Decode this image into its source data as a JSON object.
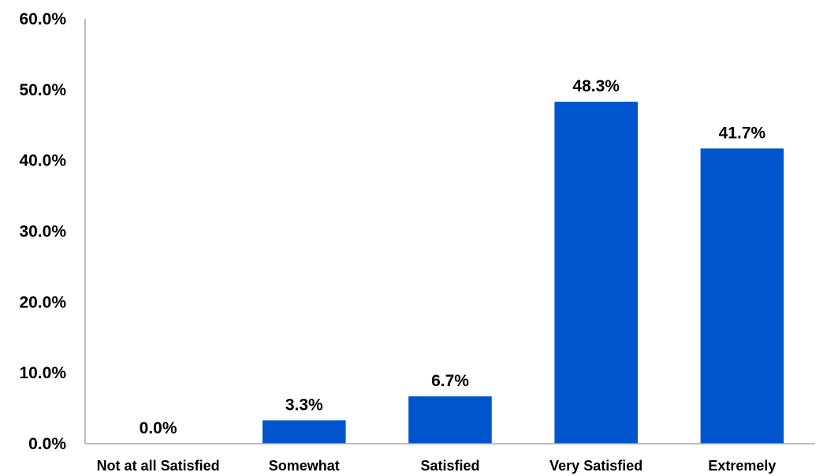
{
  "chart_data": {
    "type": "bar",
    "title": "",
    "xlabel": "",
    "ylabel": "",
    "categories": [
      "Not at all Satisfied",
      "Somewhat",
      "Satisfied",
      "Very Satisfied",
      "Extremely"
    ],
    "values": [
      0.0,
      3.3,
      6.7,
      48.3,
      41.7
    ],
    "data_labels": [
      "0.0%",
      "3.3%",
      "6.7%",
      "48.3%",
      "41.7%"
    ],
    "y_ticks": [
      "0.0%",
      "10.0%",
      "20.0%",
      "30.0%",
      "40.0%",
      "50.0%",
      "60.0%"
    ],
    "ylim": [
      0,
      60
    ],
    "grid": false,
    "legend": "none",
    "bar_color": "#0055cc"
  }
}
